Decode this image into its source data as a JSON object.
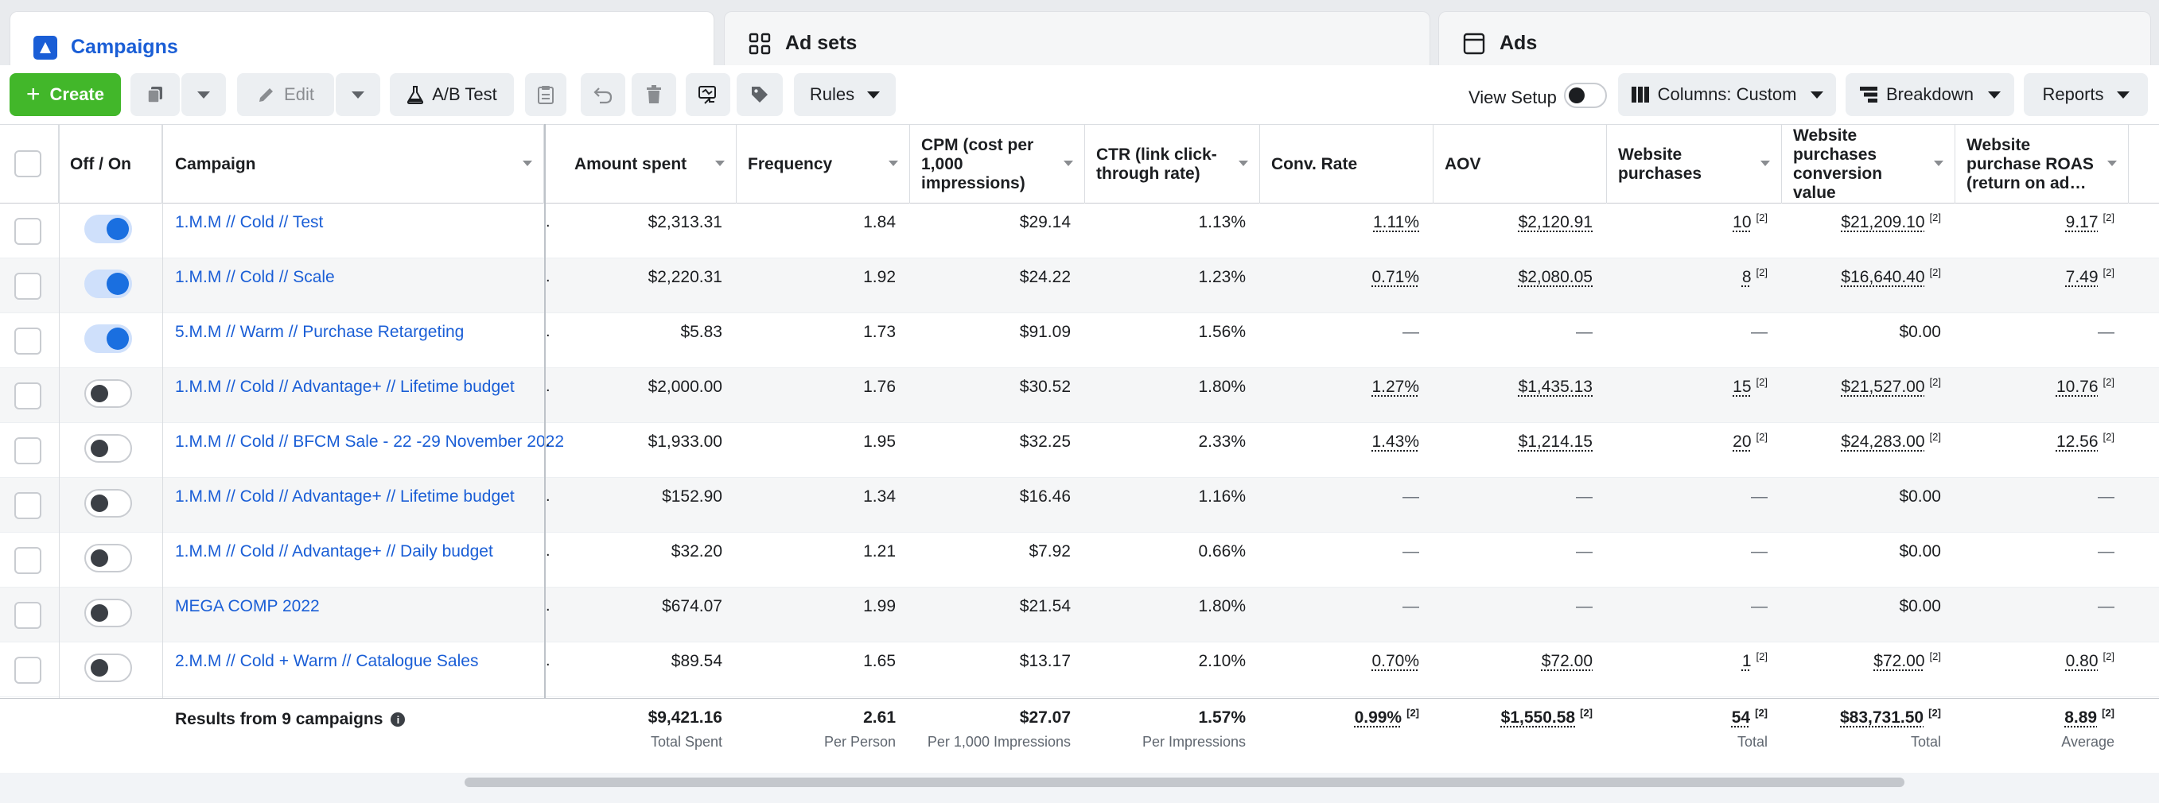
{
  "tabs": [
    {
      "label": "Campaigns",
      "icon": "campaign-flag-icon",
      "active": true
    },
    {
      "label": "Ad sets",
      "icon": "grid-icon"
    },
    {
      "label": "Ads",
      "icon": "ad-window-icon"
    }
  ],
  "toolbar": {
    "create_label": "Create",
    "edit_label": "Edit",
    "ab_test_label": "A/B Test",
    "rules_label": "Rules",
    "view_setup_label": "View Setup",
    "columns_label": "Columns: Custom",
    "breakdown_label": "Breakdown",
    "reports_label": "Reports"
  },
  "columns": {
    "off_on": "Off / On",
    "campaign": "Campaign",
    "amount_spent": "Amount spent",
    "frequency": "Frequency",
    "cpm": "CPM (cost per 1,000 impressions)",
    "ctr": "CTR (link click-through rate)",
    "conv_rate": "Conv. Rate",
    "aov": "AOV",
    "purchases": "Website purchases",
    "conv_value": "Website purchases conversion value",
    "roas": "Website purchase ROAS (return on ad…"
  },
  "rows": [
    {
      "on": true,
      "name": "1.M.M // Cold // Test",
      "spent": "$2,313.31",
      "freq": "1.84",
      "cpm": "$29.14",
      "ctr": "1.13%",
      "conv": "1.11%",
      "aov": "$2,120.91",
      "purch": "10",
      "value": "$21,209.10",
      "roas": "9.17"
    },
    {
      "on": true,
      "name": "1.M.M // Cold // Scale",
      "spent": "$2,220.31",
      "freq": "1.92",
      "cpm": "$24.22",
      "ctr": "1.23%",
      "conv": "0.71%",
      "aov": "$2,080.05",
      "purch": "8",
      "value": "$16,640.40",
      "roas": "7.49"
    },
    {
      "on": true,
      "name": "5.M.M // Warm // Purchase Retargeting",
      "spent": "$5.83",
      "freq": "1.73",
      "cpm": "$91.09",
      "ctr": "1.56%",
      "conv": "—",
      "aov": "—",
      "purch": "—",
      "value": "$0.00",
      "roas": "—"
    },
    {
      "on": false,
      "name": "1.M.M // Cold // Advantage+ // Lifetime budget",
      "spent": "$2,000.00",
      "freq": "1.76",
      "cpm": "$30.52",
      "ctr": "1.80%",
      "conv": "1.27%",
      "aov": "$1,435.13",
      "purch": "15",
      "value": "$21,527.00",
      "roas": "10.76"
    },
    {
      "on": false,
      "name": "1.M.M // Cold // BFCM Sale - 22 -29 November 2022",
      "spent": "$1,933.00",
      "freq": "1.95",
      "cpm": "$32.25",
      "ctr": "2.33%",
      "conv": "1.43%",
      "aov": "$1,214.15",
      "purch": "20",
      "value": "$24,283.00",
      "roas": "12.56"
    },
    {
      "on": false,
      "name": "1.M.M // Cold // Advantage+ // Lifetime budget",
      "spent": "$152.90",
      "freq": "1.34",
      "cpm": "$16.46",
      "ctr": "1.16%",
      "conv": "—",
      "aov": "—",
      "purch": "—",
      "value": "$0.00",
      "roas": "—"
    },
    {
      "on": false,
      "name": "1.M.M // Cold // Advantage+ // Daily budget",
      "spent": "$32.20",
      "freq": "1.21",
      "cpm": "$7.92",
      "ctr": "0.66%",
      "conv": "—",
      "aov": "—",
      "purch": "—",
      "value": "$0.00",
      "roas": "—"
    },
    {
      "on": false,
      "name": "MEGA COMP 2022",
      "spent": "$674.07",
      "freq": "1.99",
      "cpm": "$21.54",
      "ctr": "1.80%",
      "conv": "—",
      "aov": "—",
      "purch": "—",
      "value": "$0.00",
      "roas": "—"
    },
    {
      "on": false,
      "name": "2.M.M // Cold + Warm // Catalogue Sales",
      "spent": "$89.54",
      "freq": "1.65",
      "cpm": "$13.17",
      "ctr": "2.10%",
      "conv": "0.70%",
      "aov": "$72.00",
      "purch": "1",
      "value": "$72.00",
      "roas": "0.80"
    }
  ],
  "footnote_marker": "[2]",
  "totals": {
    "label": "Results from 9 campaigns",
    "spent": {
      "value": "$9,421.16",
      "sub": "Total Spent"
    },
    "freq": {
      "value": "2.61",
      "sub": "Per Person"
    },
    "cpm": {
      "value": "$27.07",
      "sub": "Per 1,000 Impressions"
    },
    "ctr": {
      "value": "1.57%",
      "sub": "Per Impressions"
    },
    "conv": {
      "value": "0.99%"
    },
    "aov": {
      "value": "$1,550.58"
    },
    "purch": {
      "value": "54",
      "sub": "Total"
    },
    "value": {
      "value": "$83,731.50",
      "sub": "Total"
    },
    "roas": {
      "value": "8.89",
      "sub": "Average"
    }
  },
  "colors": {
    "accent": "#1a5ed6",
    "create_green": "#42b72a",
    "toggle_on": "#1a6fe0"
  }
}
